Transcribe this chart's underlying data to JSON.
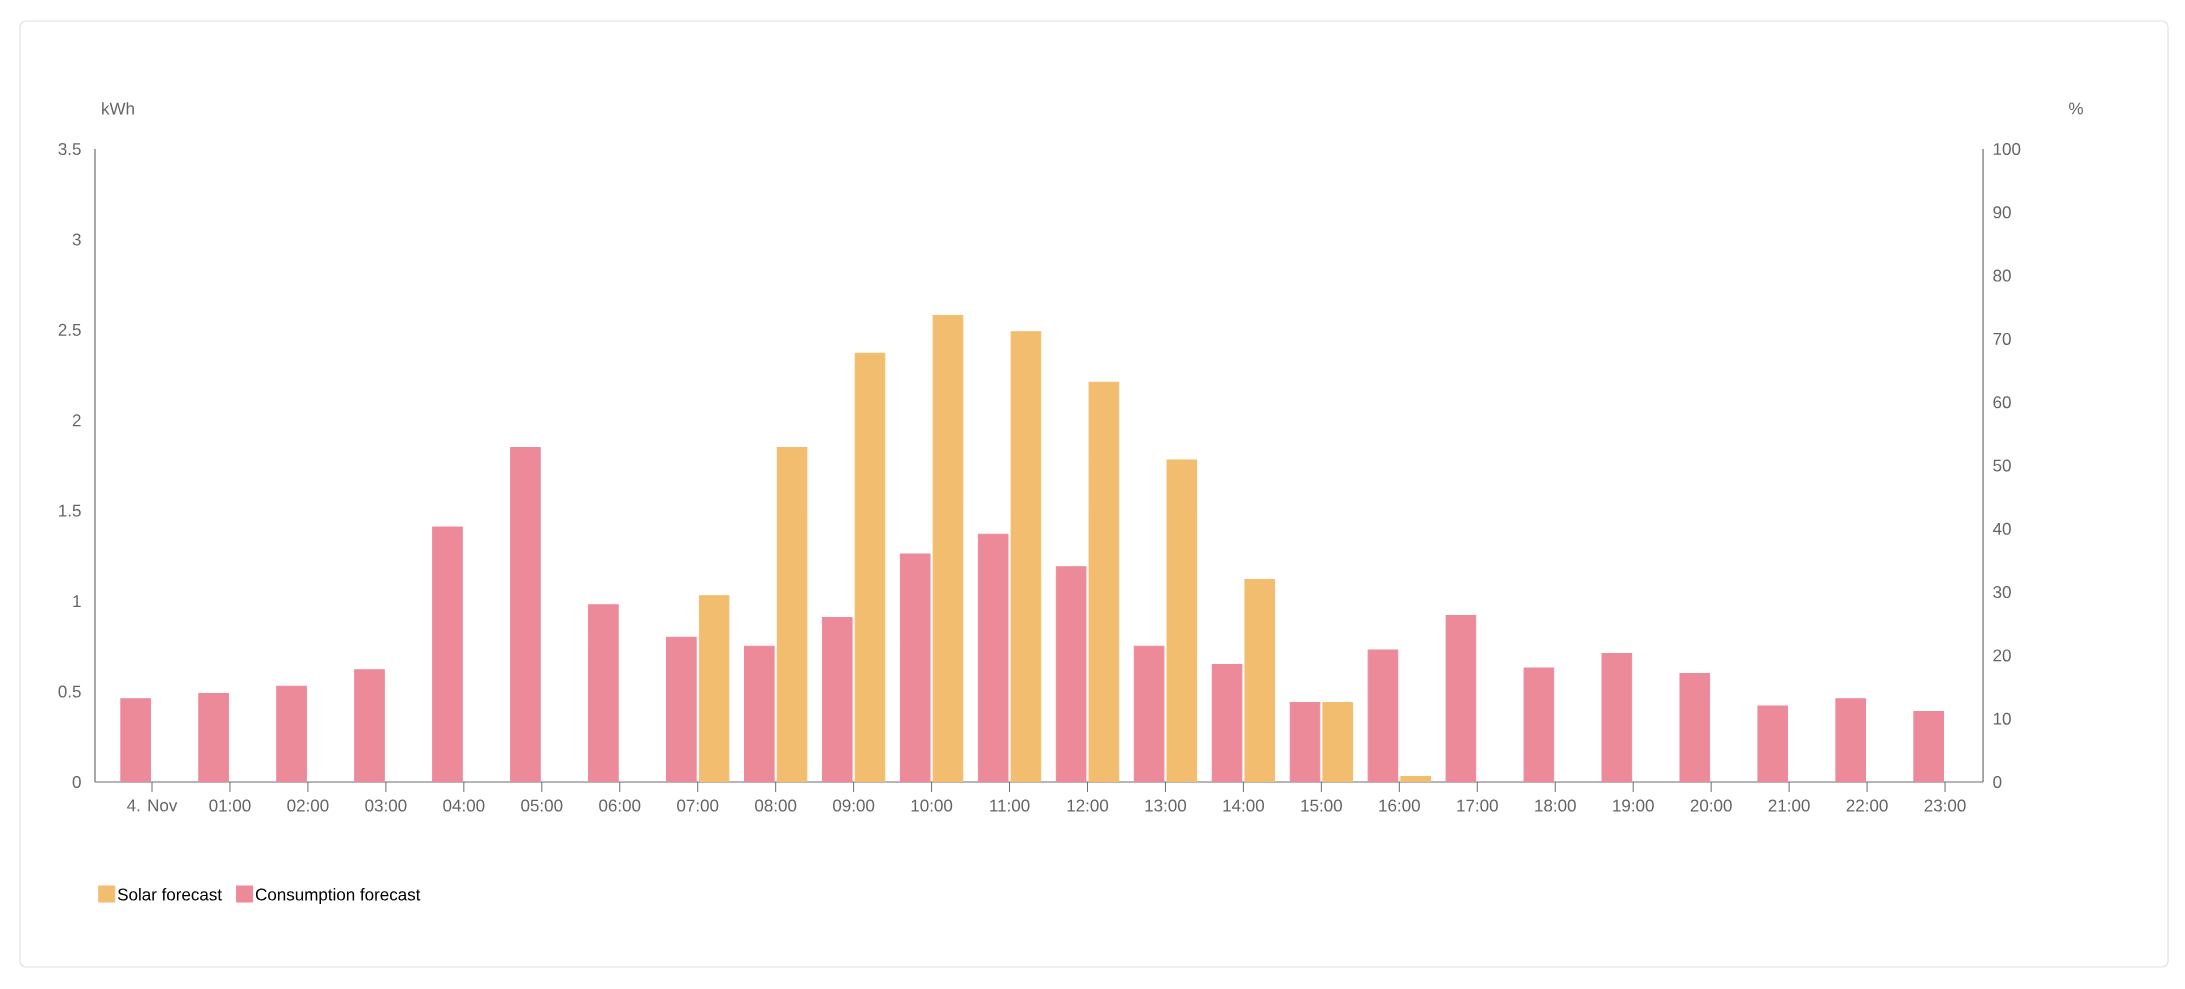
{
  "chart_data": {
    "type": "bar",
    "ylabel": "kWh",
    "y2label": "%",
    "categories": [
      "4. Nov",
      "01:00",
      "02:00",
      "03:00",
      "04:00",
      "05:00",
      "06:00",
      "07:00",
      "08:00",
      "09:00",
      "10:00",
      "11:00",
      "12:00",
      "13:00",
      "14:00",
      "15:00",
      "16:00",
      "17:00",
      "18:00",
      "19:00",
      "20:00",
      "21:00",
      "22:00",
      "23:00"
    ],
    "series": [
      {
        "name": "Consumption forecast",
        "color": "#ec8a9a",
        "values": [
          0.46,
          0.49,
          0.53,
          0.62,
          1.41,
          1.85,
          0.98,
          0.8,
          0.75,
          0.91,
          1.26,
          1.37,
          1.19,
          0.75,
          0.65,
          0.44,
          0.73,
          0.92,
          0.63,
          0.71,
          0.6,
          0.42,
          0.46,
          0.39
        ]
      },
      {
        "name": "Solar forecast",
        "color": "#f2bd6e",
        "values": [
          null,
          null,
          null,
          null,
          null,
          null,
          null,
          1.03,
          1.85,
          2.37,
          2.58,
          2.49,
          2.21,
          1.78,
          1.12,
          0.44,
          0.03,
          null,
          null,
          null,
          null,
          null,
          null,
          null
        ]
      }
    ],
    "ylim": [
      0,
      3.5
    ],
    "yticks": [
      0,
      0.5,
      1,
      1.5,
      2,
      2.5,
      3,
      3.5
    ],
    "y2lim": [
      0,
      100
    ],
    "y2ticks": [
      0,
      10,
      20,
      30,
      40,
      50,
      60,
      70,
      80,
      90,
      100
    ],
    "legend": "bottom left",
    "grid": false
  }
}
